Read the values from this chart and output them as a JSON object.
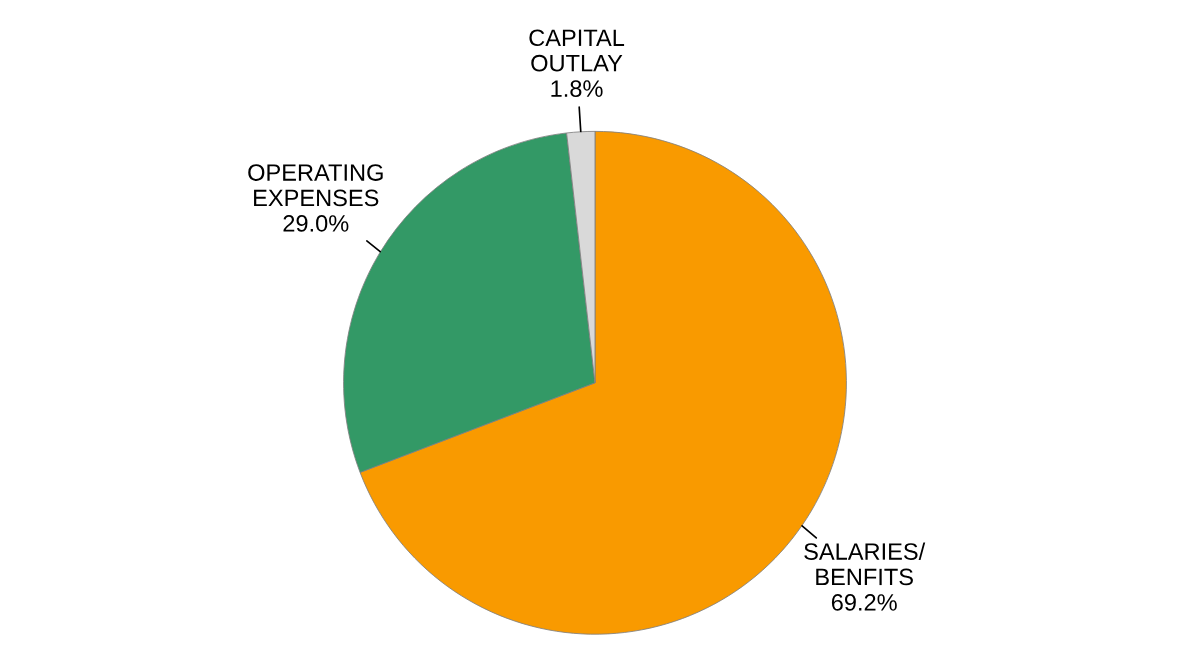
{
  "chart_data": {
    "type": "pie",
    "categories": [
      "SALARIES/\nBENFITS",
      "OPERATING\nEXPENSES",
      "CAPITAL\nOUTLAY"
    ],
    "values": [
      69.2,
      29.0,
      1.8
    ],
    "colors": [
      "#f99a00",
      "#339966",
      "#d9d9d9"
    ],
    "value_labels": [
      "69.2%",
      "29.0%",
      "1.8%"
    ],
    "legend": false
  }
}
